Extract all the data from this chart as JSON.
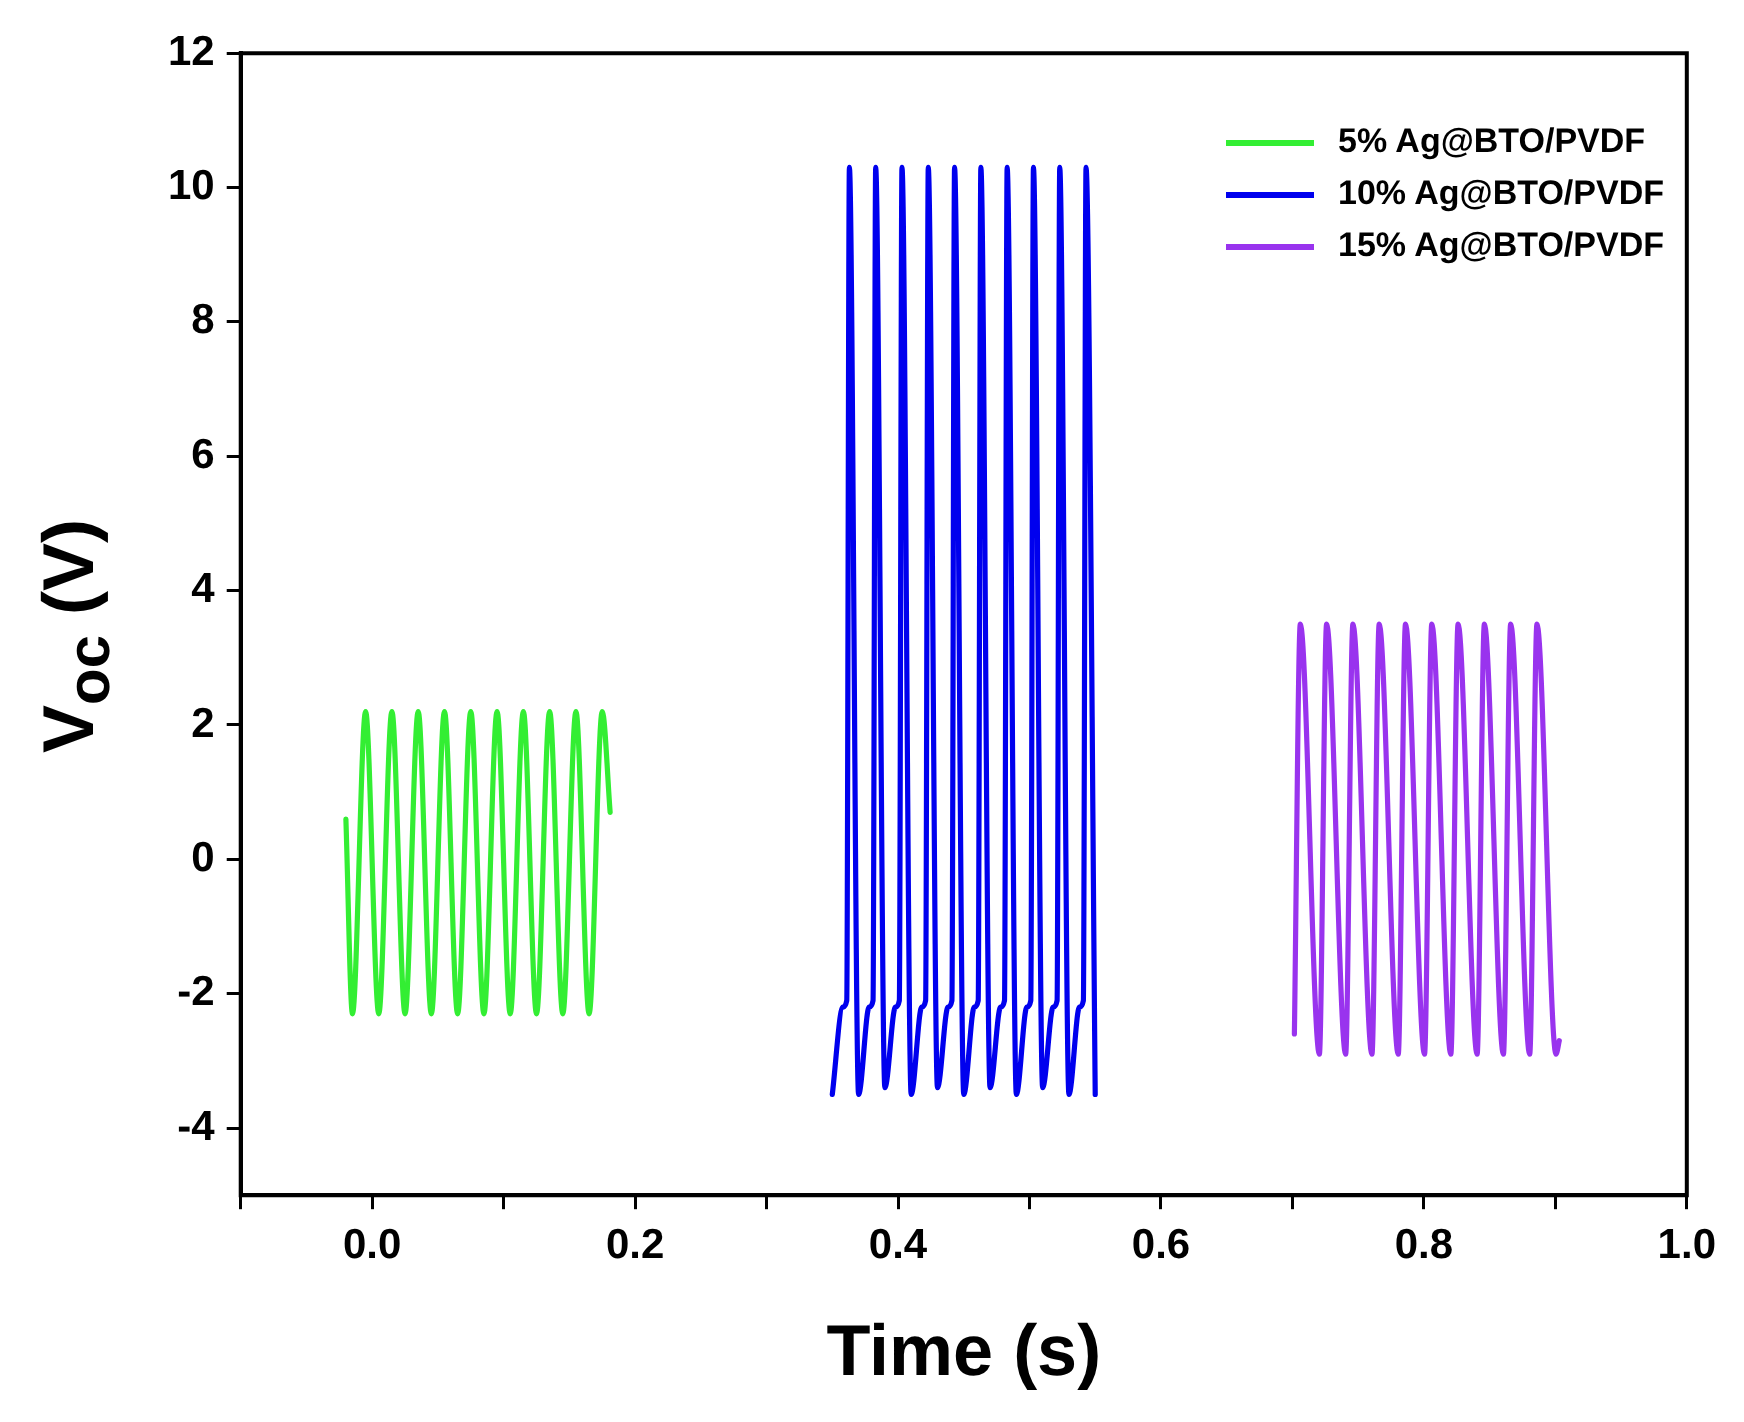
{
  "chart_data": {
    "type": "line",
    "xlabel": "Time (s)",
    "ylabel": "V$_{oc}$ (V)",
    "xlim": [
      -0.1,
      1.0
    ],
    "xticks": [
      {
        "value": -0.1,
        "label": null
      },
      {
        "value": 0,
        "label": "0.0"
      },
      {
        "value": 0.1,
        "label": null
      },
      {
        "value": 0.2,
        "label": "0.2"
      },
      {
        "value": 0.3,
        "label": null
      },
      {
        "value": 0.4,
        "label": "0.4"
      },
      {
        "value": 0.5,
        "label": null
      },
      {
        "value": 0.6,
        "label": "0.6"
      },
      {
        "value": 0.7,
        "label": null
      },
      {
        "value": 0.8,
        "label": "0.8"
      },
      {
        "value": 0.9,
        "label": null
      },
      {
        "value": 1.0,
        "label": "1.0"
      }
    ],
    "ylim": [
      -5,
      12
    ],
    "yticks": [
      -4,
      -2,
      0,
      2,
      4,
      6,
      8,
      10,
      12
    ],
    "grid": false,
    "legend": "top right",
    "marker": "none",
    "line_style": "solid",
    "series": [
      {
        "name": "5% Ag@BTO/PVDF",
        "color": "#33ee33",
        "x": [
          -0.02,
          -0.015,
          -0.005,
          0.005,
          0.015,
          0.025,
          0.035,
          0.045,
          0.055,
          0.065,
          0.075,
          0.085,
          0.095,
          0.105,
          0.115,
          0.125,
          0.135,
          0.145,
          0.155,
          0.165,
          0.175,
          0.181
        ],
        "values": [
          0.6,
          -2.3,
          2.2,
          -2.3,
          2.2,
          -2.3,
          2.2,
          -2.3,
          2.2,
          -2.3,
          2.2,
          -2.3,
          2.2,
          -2.3,
          2.2,
          -2.3,
          2.2,
          -2.3,
          2.2,
          -2.3,
          2.2,
          0.7
        ]
      },
      {
        "name": "10% Ag@BTO/PVDF",
        "color": "#0000ee",
        "x": [
          0.35,
          0.358,
          0.361,
          0.363,
          0.37,
          0.378,
          0.381,
          0.383,
          0.39,
          0.398,
          0.401,
          0.403,
          0.41,
          0.418,
          0.421,
          0.423,
          0.43,
          0.438,
          0.441,
          0.443,
          0.45,
          0.458,
          0.461,
          0.463,
          0.47,
          0.478,
          0.481,
          0.483,
          0.49,
          0.498,
          0.501,
          0.503,
          0.51,
          0.518,
          0.521,
          0.523,
          0.53,
          0.538,
          0.541,
          0.543,
          0.55
        ],
        "values": [
          -3.5,
          -2.2,
          -2.1,
          10.3,
          -3.5,
          -2.2,
          -2.1,
          10.3,
          -3.4,
          -2.2,
          -2.1,
          10.3,
          -3.5,
          -2.2,
          -2.1,
          10.3,
          -3.4,
          -2.2,
          -2.1,
          10.3,
          -3.5,
          -2.2,
          -2.1,
          10.3,
          -3.4,
          -2.2,
          -2.1,
          10.3,
          -3.5,
          -2.2,
          -2.1,
          10.3,
          -3.4,
          -2.2,
          -2.1,
          10.3,
          -3.5,
          -2.2,
          -2.1,
          10.3,
          -3.5
        ]
      },
      {
        "name": "15% Ag@BTO/PVDF",
        "color": "#9933ee",
        "x": [
          0.7015,
          0.706,
          0.7205,
          0.726,
          0.7405,
          0.746,
          0.7605,
          0.766,
          0.7805,
          0.786,
          0.8005,
          0.806,
          0.8205,
          0.826,
          0.8405,
          0.846,
          0.8605,
          0.866,
          0.8805,
          0.886,
          0.9005,
          0.903
        ],
        "values": [
          -2.6,
          3.5,
          -2.9,
          3.5,
          -2.9,
          3.5,
          -2.9,
          3.5,
          -2.9,
          3.5,
          -2.9,
          3.5,
          -2.9,
          3.5,
          -2.9,
          3.5,
          -2.9,
          3.5,
          -2.9,
          3.5,
          -2.9,
          -2.7
        ]
      }
    ]
  }
}
